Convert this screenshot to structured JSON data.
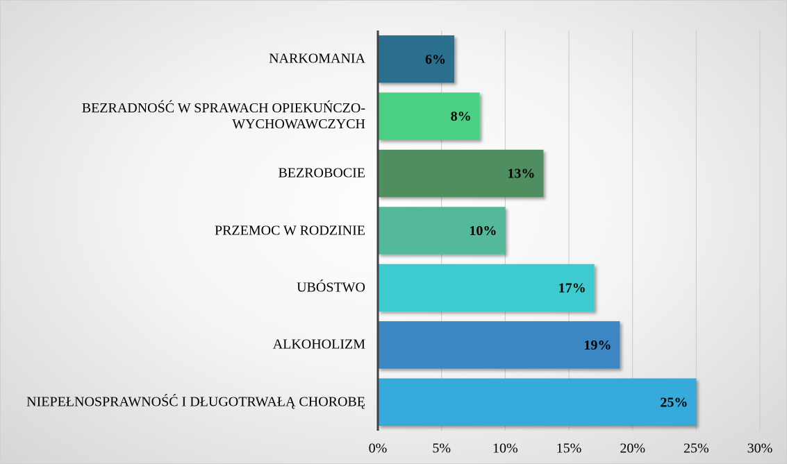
{
  "chart_data": {
    "type": "bar",
    "orientation": "horizontal",
    "categories": [
      "NARKOMANIA",
      "BEZRADNOŚĆ W SPRAWACH OPIEKUŃCZO-WYCHOWAWCZYCH",
      "BEZROBOCIE",
      "PRZEMOC W RODZINIE",
      "UBÓSTWO",
      "ALKOHOLIZM",
      "NIEPEŁNOSPRAWNOŚĆ I DŁUGOTRWAŁĄ CHOROBĘ"
    ],
    "values": [
      6,
      8,
      13,
      10,
      17,
      19,
      25
    ],
    "value_labels": [
      "6%",
      "8%",
      "13%",
      "10%",
      "17%",
      "19%",
      "25%"
    ],
    "colors": [
      "#2b6f8e",
      "#4ccf85",
      "#4f8e5f",
      "#53b99a",
      "#3ccbd0",
      "#3a86c3",
      "#35aadb"
    ],
    "xlim": [
      0,
      30
    ],
    "xticks": [
      {
        "value": 0,
        "label": "0%"
      },
      {
        "value": 5,
        "label": "5%"
      },
      {
        "value": 10,
        "label": "10%"
      },
      {
        "value": 15,
        "label": "15%"
      },
      {
        "value": 20,
        "label": "20%"
      },
      {
        "value": 25,
        "label": "25%"
      },
      {
        "value": 30,
        "label": "30%"
      }
    ],
    "grid": true
  }
}
